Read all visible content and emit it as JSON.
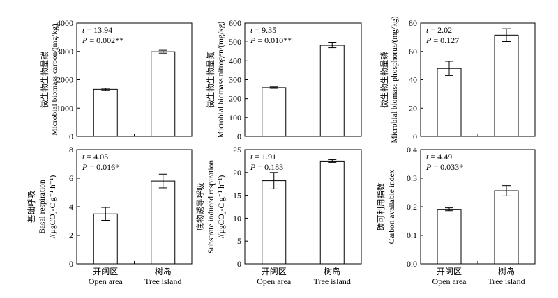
{
  "chart_data": [
    {
      "type": "bar",
      "panel": "a",
      "categories": [
        "Open area",
        "Tree island"
      ],
      "values": [
        1660,
        2990
      ],
      "errors": [
        35,
        50
      ],
      "ylim": [
        0,
        4000
      ],
      "yticks": [
        0,
        1000,
        2000,
        3000,
        4000
      ],
      "ylabel_cn": "微生物生物量碳",
      "ylabel_lines": [
        "Microbial biomass carbon/(mg/kg)"
      ],
      "stats": [
        "t = 13.94",
        "P = 0.002**"
      ]
    },
    {
      "type": "bar",
      "panel": "b",
      "categories": [
        "Open area",
        "Tree island"
      ],
      "values": [
        258,
        482
      ],
      "errors": [
        4,
        13
      ],
      "ylim": [
        0,
        600
      ],
      "yticks": [
        0,
        100,
        200,
        300,
        400,
        500,
        600
      ],
      "ylabel_cn": "微生物生物量氮",
      "ylabel_lines": [
        "Microbial biomass nitrogen/(mg/kg)"
      ],
      "stats": [
        "t = 9.35",
        "P = 0.010**"
      ]
    },
    {
      "type": "bar",
      "panel": "c",
      "categories": [
        "Open area",
        "Tree island"
      ],
      "values": [
        48,
        71.5
      ],
      "errors": [
        5,
        4.5
      ],
      "ylim": [
        0,
        80
      ],
      "yticks": [
        0,
        20,
        40,
        60,
        80
      ],
      "ylabel_cn": "微生物生物量磷",
      "ylabel_lines": [
        "Microbial biomass phosphorus/(mg/kg)"
      ],
      "stats": [
        "t = 2.02",
        "P = 0.127"
      ]
    },
    {
      "type": "bar",
      "panel": "d",
      "categories": [
        "Open area",
        "Tree island"
      ],
      "values": [
        3.5,
        5.8
      ],
      "errors": [
        0.45,
        0.48
      ],
      "ylim": [
        0,
        8
      ],
      "yticks": [
        0,
        2,
        4,
        6,
        8
      ],
      "ylabel_cn": "基础呼吸",
      "ylabel_lines": [
        "Basal respiration",
        "/(μgCO₂-C g⁻¹ h⁻¹)"
      ],
      "stats": [
        "t = 4.05",
        "P = 0.016*"
      ]
    },
    {
      "type": "bar",
      "panel": "e",
      "categories": [
        "Open area",
        "Tree island"
      ],
      "values": [
        18.2,
        22.5
      ],
      "errors": [
        1.8,
        0.3
      ],
      "ylim": [
        0,
        25
      ],
      "yticks": [
        0,
        5,
        10,
        15,
        20,
        25
      ],
      "ylabel_cn": "底物诱导呼吸",
      "ylabel_lines": [
        "Substrate induced respiration",
        "/(μgCO₂-C g⁻¹ h⁻¹)"
      ],
      "stats": [
        "t = 1.91",
        "P = 0.183"
      ]
    },
    {
      "type": "bar",
      "panel": "f",
      "categories": [
        "Open area",
        "Tree island"
      ],
      "values": [
        0.191,
        0.256
      ],
      "errors": [
        0.005,
        0.018
      ],
      "ylim": [
        0,
        0.4
      ],
      "yticks": [
        0,
        0.1,
        0.2,
        0.3,
        0.4
      ],
      "ylabel_cn": "碳可利用指数",
      "ylabel_lines": [
        "Carbon available index"
      ],
      "stats": [
        "t = 4.49",
        "P = 0.033*"
      ]
    }
  ],
  "x_labels_cn": [
    "开阔区",
    "树岛"
  ],
  "x_labels_en": [
    "Open area",
    "Tree island"
  ]
}
